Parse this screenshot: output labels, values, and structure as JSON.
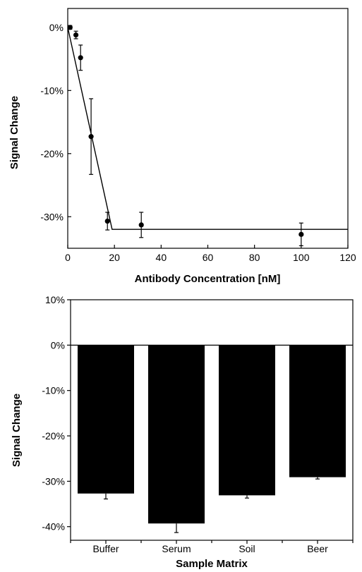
{
  "chart_data": [
    {
      "type": "scatter",
      "xlabel": "Antibody Concentration [nM]",
      "ylabel": "Signal Change",
      "xlim": [
        0,
        120
      ],
      "ylim": [
        -35,
        3
      ],
      "x_ticks": [
        0,
        20,
        40,
        60,
        80,
        100,
        120
      ],
      "y_ticks": [
        0,
        -10,
        -20,
        -30
      ],
      "y_tick_labels": [
        "0%",
        "-10%",
        "-20%",
        "-30%"
      ],
      "grid": false,
      "points": [
        {
          "x": 1,
          "y": 0,
          "err": 0.3
        },
        {
          "x": 3.5,
          "y": -1.2,
          "err": 0.6
        },
        {
          "x": 5.5,
          "y": -4.8,
          "err": 2.0
        },
        {
          "x": 10,
          "y": -17.3,
          "err": 6.0
        },
        {
          "x": 17,
          "y": -30.7,
          "err": 1.4
        },
        {
          "x": 31.5,
          "y": -31.3,
          "err": 2.0
        },
        {
          "x": 100,
          "y": -32.8,
          "err": 1.8
        }
      ],
      "fit_line": [
        {
          "x": 0,
          "y": 0
        },
        {
          "x": 19,
          "y": -32
        },
        {
          "x": 120,
          "y": -32
        }
      ],
      "marker_color": "#000000"
    },
    {
      "type": "bar",
      "xlabel": "Sample Matrix",
      "ylabel": "Signal Change",
      "ylim": [
        -43,
        10
      ],
      "y_ticks": [
        10,
        0,
        -10,
        -20,
        -30,
        -40
      ],
      "y_tick_labels": [
        "10%",
        "0%",
        "-10%",
        "-20%",
        "-30%",
        "-40%"
      ],
      "categories": [
        "Buffer",
        "Serum",
        "Soil",
        "Beer"
      ],
      "values": [
        -32.7,
        -39.3,
        -33.1,
        -29.1
      ],
      "errors": [
        1.2,
        2.0,
        0.6,
        0.4
      ],
      "bar_color": "#000000"
    }
  ]
}
